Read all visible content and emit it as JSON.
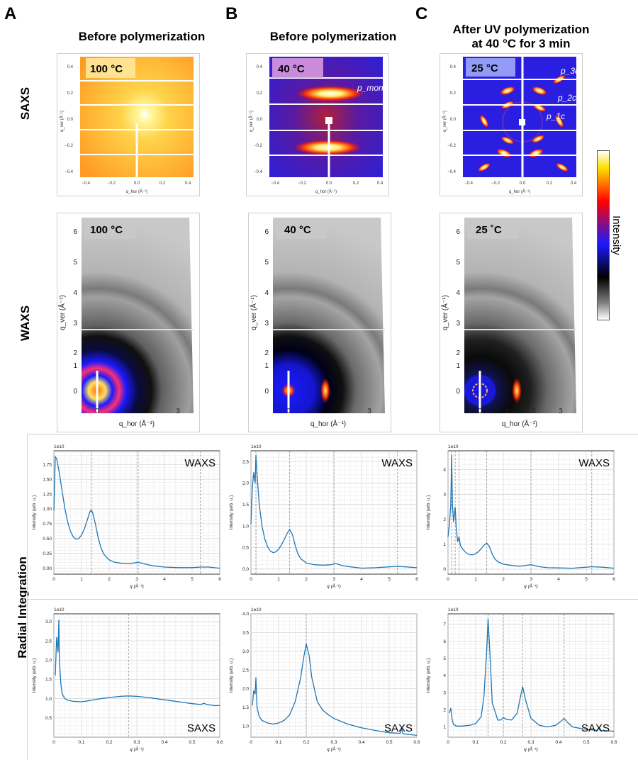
{
  "panels": {
    "A": "A",
    "B": "B",
    "C": "C"
  },
  "titles": {
    "a": "Before polymerization",
    "b": "Before polymerization",
    "c1": "After UV polymerization",
    "c2": "at 40 °C for 3 min"
  },
  "rows": {
    "saxs": "SAXS",
    "waxs": "WAXS",
    "radial": "Radial Integration"
  },
  "colorbar": {
    "label": "Intensity",
    "colors": [
      "#ffffff",
      "#7f7f7f",
      "#000000",
      "#1a1aff",
      "#ff0000",
      "#ffe000",
      "#ffffff"
    ]
  },
  "detector": {
    "temps": [
      "100 °C",
      "40 °C",
      "25 °C"
    ],
    "waxs_temps": [
      "100 °C",
      "40 °C",
      "25 ˚C"
    ],
    "saxs_ticks": [
      "0.4",
      "0.2",
      "0.0",
      "−0.2",
      "−0.4"
    ],
    "saxs_xticks": [
      "−0.4",
      "−0.2",
      "0.0",
      "0.2",
      "0.4"
    ],
    "saxs_xlabel": "q_hor (Å⁻¹)",
    "saxs_ylabel": "q_ver (Å⁻¹)",
    "waxs_yticks": [
      "6",
      "5",
      "4",
      "3",
      "2",
      "1",
      "0"
    ],
    "waxs_xticks": [
      "0",
      "1",
      "2",
      "3"
    ],
    "waxs_xlabel": "q_hor (Å⁻¹)",
    "waxs_ylabel": "q_ver (Å⁻¹)",
    "annotations": {
      "pmono": "p_mono",
      "p3c": "p_3c",
      "p2c": "p_2c",
      "p1c": "p_1c"
    }
  },
  "chart_data": [
    {
      "type": "line",
      "title": "WAXS",
      "exponent": "1e10",
      "xlabel": "q (Å⁻¹)",
      "ylabel": "Intensity (arb. u.)",
      "xlim": [
        0,
        6
      ],
      "ylim": [
        -0.1,
        1.98
      ],
      "xticks": [
        0,
        1,
        2,
        3,
        4,
        5,
        6
      ],
      "yticks": [
        0.0,
        0.25,
        0.5,
        0.75,
        1.0,
        1.25,
        1.5,
        1.75
      ],
      "ytick_fmt": 2,
      "grid": true,
      "vlines": [
        1.35,
        3.05,
        5.3
      ],
      "x": [
        0,
        0.05,
        0.1,
        0.2,
        0.3,
        0.4,
        0.5,
        0.6,
        0.7,
        0.8,
        0.9,
        1.0,
        1.1,
        1.2,
        1.3,
        1.35,
        1.4,
        1.5,
        1.6,
        1.7,
        1.8,
        2.0,
        2.2,
        2.5,
        2.8,
        3.05,
        3.3,
        3.6,
        4.0,
        4.5,
        5.0,
        5.3,
        5.6,
        6.0
      ],
      "y": [
        0.97,
        1.88,
        1.85,
        1.6,
        1.3,
        1.0,
        0.78,
        0.62,
        0.53,
        0.49,
        0.5,
        0.56,
        0.66,
        0.8,
        0.95,
        0.98,
        0.94,
        0.75,
        0.52,
        0.35,
        0.24,
        0.14,
        0.1,
        0.08,
        0.08,
        0.1,
        0.07,
        0.04,
        0.02,
        0.01,
        0.01,
        0.02,
        0.02,
        0.0
      ]
    },
    {
      "type": "line",
      "title": "WAXS",
      "exponent": "1e10",
      "xlabel": "q (Å⁻¹)",
      "ylabel": "Intensity (arb. u.)",
      "xlim": [
        0,
        6
      ],
      "ylim": [
        -0.12,
        2.75
      ],
      "xticks": [
        0,
        1,
        2,
        3,
        4,
        5,
        6
      ],
      "yticks": [
        0.0,
        0.5,
        1.0,
        1.5,
        2.0,
        2.5
      ],
      "ytick_fmt": 1,
      "grid": true,
      "vlines": [
        0.18,
        1.4,
        3.0,
        5.3
      ],
      "x": [
        0,
        0.05,
        0.1,
        0.15,
        0.18,
        0.22,
        0.3,
        0.4,
        0.5,
        0.6,
        0.7,
        0.8,
        0.9,
        1.0,
        1.1,
        1.2,
        1.3,
        1.4,
        1.5,
        1.6,
        1.7,
        1.8,
        2.0,
        2.3,
        2.6,
        2.9,
        3.05,
        3.3,
        3.6,
        4.0,
        4.5,
        5.0,
        5.3,
        5.6,
        6.0
      ],
      "y": [
        1.05,
        1.9,
        2.25,
        2.0,
        2.65,
        2.2,
        1.5,
        1.0,
        0.7,
        0.52,
        0.42,
        0.38,
        0.4,
        0.46,
        0.56,
        0.68,
        0.82,
        0.92,
        0.8,
        0.55,
        0.35,
        0.24,
        0.14,
        0.1,
        0.09,
        0.1,
        0.13,
        0.08,
        0.05,
        0.02,
        0.03,
        0.05,
        0.06,
        0.05,
        0.03
      ]
    },
    {
      "type": "line",
      "title": "WAXS",
      "exponent": "1e10",
      "xlabel": "q (Å⁻¹)",
      "ylabel": "Intensity (arb. u.)",
      "xlim": [
        0,
        6
      ],
      "ylim": [
        -0.2,
        4.75
      ],
      "xticks": [
        0,
        1,
        2,
        3,
        4,
        5,
        6
      ],
      "yticks": [
        0,
        1,
        2,
        3,
        4
      ],
      "ytick_fmt": 0,
      "grid": true,
      "vlines": [
        0.13,
        0.26,
        0.4,
        1.4,
        3.0,
        5.2
      ],
      "x": [
        0,
        0.05,
        0.1,
        0.13,
        0.16,
        0.2,
        0.26,
        0.3,
        0.35,
        0.4,
        0.45,
        0.5,
        0.6,
        0.7,
        0.8,
        0.9,
        1.0,
        1.1,
        1.2,
        1.3,
        1.4,
        1.5,
        1.6,
        1.7,
        1.8,
        2.0,
        2.3,
        2.6,
        3.0,
        3.3,
        3.6,
        4.0,
        4.5,
        5.0,
        5.2,
        5.6,
        6.0
      ],
      "y": [
        1.3,
        1.8,
        2.6,
        4.6,
        2.6,
        1.9,
        2.5,
        1.6,
        1.1,
        1.3,
        0.95,
        0.85,
        0.72,
        0.62,
        0.58,
        0.58,
        0.62,
        0.7,
        0.82,
        0.96,
        1.05,
        0.9,
        0.6,
        0.4,
        0.3,
        0.2,
        0.15,
        0.12,
        0.18,
        0.1,
        0.06,
        0.05,
        0.04,
        0.08,
        0.1,
        0.08,
        0.04
      ]
    },
    {
      "type": "line",
      "title": "SAXS",
      "exponent": "1e10",
      "xlabel": "q (Å⁻¹)",
      "ylabel": "Intensity (arb. u.)",
      "xlim": [
        0,
        0.6
      ],
      "ylim": [
        0.0,
        3.2
      ],
      "xticks": [
        0,
        0.1,
        0.2,
        0.3,
        0.4,
        0.5,
        0.6
      ],
      "yticks": [
        0.5,
        1.0,
        1.5,
        2.0,
        2.5,
        3.0
      ],
      "ytick_fmt": 1,
      "grid": true,
      "vlines": [
        0.27
      ],
      "x": [
        0.005,
        0.01,
        0.015,
        0.018,
        0.02,
        0.025,
        0.03,
        0.04,
        0.05,
        0.07,
        0.1,
        0.13,
        0.16,
        0.2,
        0.24,
        0.27,
        0.3,
        0.34,
        0.38,
        0.42,
        0.46,
        0.5,
        0.53,
        0.545,
        0.55,
        0.56,
        0.58,
        0.6
      ],
      "y": [
        1.6,
        2.6,
        2.2,
        3.05,
        2.0,
        1.4,
        1.12,
        1.0,
        0.96,
        0.93,
        0.92,
        0.95,
        0.99,
        1.03,
        1.06,
        1.07,
        1.06,
        1.03,
        0.99,
        0.95,
        0.91,
        0.87,
        0.85,
        0.88,
        0.85,
        0.84,
        0.82,
        0.82
      ]
    },
    {
      "type": "line",
      "title": "SAXS",
      "exponent": "1e10",
      "xlabel": "q (Å⁻¹)",
      "ylabel": "Intensity (arb. u.)",
      "xlim": [
        0,
        0.6
      ],
      "ylim": [
        0.7,
        4.0
      ],
      "xticks": [
        0,
        0.1,
        0.2,
        0.3,
        0.4,
        0.5,
        0.6
      ],
      "yticks": [
        1.0,
        1.5,
        2.0,
        2.5,
        3.0,
        3.5,
        4.0
      ],
      "ytick_fmt": 1,
      "grid": true,
      "vlines": [
        0.2
      ],
      "x": [
        0.005,
        0.01,
        0.015,
        0.018,
        0.022,
        0.03,
        0.04,
        0.06,
        0.08,
        0.1,
        0.12,
        0.14,
        0.16,
        0.18,
        0.19,
        0.2,
        0.21,
        0.22,
        0.24,
        0.26,
        0.28,
        0.3,
        0.35,
        0.4,
        0.45,
        0.5,
        0.54,
        0.545,
        0.55,
        0.6
      ],
      "y": [
        1.55,
        1.95,
        1.85,
        2.3,
        1.5,
        1.25,
        1.15,
        1.08,
        1.05,
        1.08,
        1.15,
        1.3,
        1.65,
        2.3,
        2.8,
        3.2,
        2.9,
        2.3,
        1.65,
        1.42,
        1.3,
        1.2,
        1.05,
        0.95,
        0.88,
        0.82,
        0.8,
        0.93,
        0.79,
        0.75
      ]
    },
    {
      "type": "line",
      "title": "SAXS",
      "exponent": "1e10",
      "xlabel": "q (Å⁻¹)",
      "ylabel": "Intensity (arb. u.)",
      "xlim": [
        0,
        0.6
      ],
      "ylim": [
        0.4,
        7.6
      ],
      "xticks": [
        0,
        0.1,
        0.2,
        0.3,
        0.4,
        0.5,
        0.6
      ],
      "yticks": [
        1,
        2,
        3,
        4,
        5,
        6,
        7
      ],
      "ytick_fmt": 0,
      "grid": true,
      "vlines": [
        0.145,
        0.2,
        0.27,
        0.42
      ],
      "x": [
        0.005,
        0.01,
        0.015,
        0.02,
        0.03,
        0.05,
        0.08,
        0.1,
        0.12,
        0.13,
        0.14,
        0.145,
        0.15,
        0.16,
        0.18,
        0.19,
        0.2,
        0.21,
        0.23,
        0.25,
        0.26,
        0.27,
        0.28,
        0.3,
        0.33,
        0.36,
        0.39,
        0.41,
        0.42,
        0.43,
        0.45,
        0.5,
        0.54,
        0.545,
        0.55,
        0.6
      ],
      "y": [
        1.8,
        2.1,
        1.4,
        1.15,
        1.05,
        1.05,
        1.1,
        1.2,
        1.6,
        2.8,
        5.5,
        7.3,
        5.8,
        2.4,
        1.4,
        1.4,
        1.55,
        1.45,
        1.4,
        1.8,
        2.6,
        3.35,
        2.6,
        1.5,
        1.1,
        1.0,
        1.1,
        1.35,
        1.5,
        1.3,
        1.0,
        0.85,
        0.8,
        0.95,
        0.78,
        0.75
      ]
    }
  ]
}
